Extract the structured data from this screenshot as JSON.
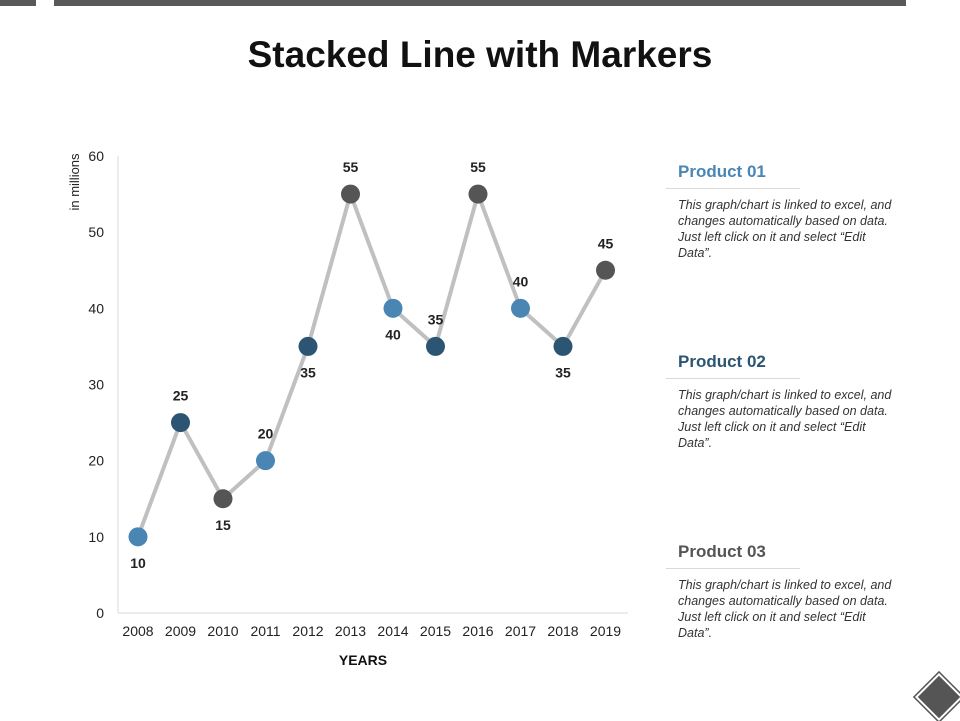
{
  "title": "Stacked Line with Markers",
  "colors": {
    "product_01": "#4a86b4",
    "product_02": "#2b5572",
    "product_03": "#555555",
    "line": "#c0c0c0"
  },
  "legend": [
    {
      "title": "Product 01",
      "color": "#4a86b4",
      "desc": "This graph/chart is linked to excel, and changes automatically based on data. Just left click on it and select “Edit Data”."
    },
    {
      "title": "Product 02",
      "color": "#2b5572",
      "desc": "This graph/chart is linked to excel, and changes automatically based on data. Just left click on it and select “Edit Data”."
    },
    {
      "title": "Product 03",
      "color": "#555555",
      "desc": "This graph/chart is linked to excel, and changes automatically based on data. Just left click on it and select “Edit Data”."
    }
  ],
  "chart_data": {
    "type": "line",
    "title": "Stacked Line with Markers",
    "xlabel": "YEARS",
    "ylabel": "in millions",
    "ylim": [
      0,
      60
    ],
    "yticks": [
      0,
      10,
      20,
      30,
      40,
      50,
      60
    ],
    "grid": false,
    "categories": [
      "2008",
      "2009",
      "2010",
      "2011",
      "2012",
      "2013",
      "2014",
      "2015",
      "2016",
      "2017",
      "2018",
      "2019"
    ],
    "values": [
      10,
      25,
      15,
      20,
      35,
      55,
      40,
      35,
      55,
      40,
      35,
      45
    ],
    "marker_series": [
      "Product 01",
      "Product 02",
      "Product 03",
      "Product 01",
      "Product 02",
      "Product 03",
      "Product 01",
      "Product 02",
      "Product 03",
      "Product 01",
      "Product 02",
      "Product 03"
    ],
    "label_position": [
      "below",
      "above",
      "below",
      "above",
      "below",
      "above",
      "below",
      "above",
      "above",
      "above",
      "below",
      "above"
    ],
    "series": [
      {
        "name": "Product 01",
        "color": "#4a86b4"
      },
      {
        "name": "Product 02",
        "color": "#2b5572"
      },
      {
        "name": "Product 03",
        "color": "#555555"
      }
    ]
  }
}
